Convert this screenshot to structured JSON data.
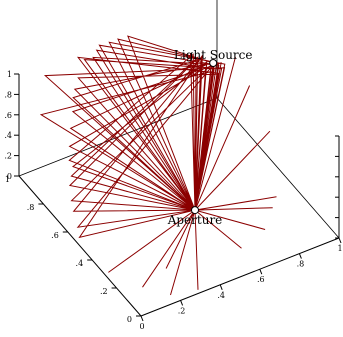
{
  "chart_data": {
    "type": "line",
    "title": "",
    "xlabel": "",
    "ylabel": "",
    "zlabel": "",
    "xlim": [
      0,
      1
    ],
    "ylim": [
      0,
      1
    ],
    "zlim": [
      0,
      1
    ],
    "grid": false,
    "legend": "none",
    "line_color": "#8b0000",
    "point_fill": "#ffffff",
    "x_ticks": [
      "0",
      ".2",
      ".4",
      ".6",
      ".8",
      "1"
    ],
    "y_ticks": [
      "0",
      ".2",
      ".4",
      ".6",
      ".8",
      "1"
    ],
    "z_ticks": [
      "0",
      ".2",
      ".4",
      ".6",
      ".8",
      "1"
    ],
    "points": [
      {
        "name": "aperture",
        "label": "Aperture",
        "x": 0.55,
        "y": 0.45,
        "z": 0.0
      },
      {
        "name": "light-source",
        "label": "Light Source",
        "x": 0.95,
        "y": 0.95,
        "z": 0.45
      }
    ],
    "series": [
      {
        "path": [
          [
            0.86,
            0.99,
            0.56
          ],
          [
            0.55,
            0.45,
            0.0
          ],
          [
            0.05,
            0.9,
            0.7
          ],
          [
            0.92,
            0.92,
            0.43
          ],
          [
            0.55,
            0.45,
            0.0
          ],
          [
            0.12,
            0.98,
            0.92
          ],
          [
            0.97,
            0.89,
            0.47
          ],
          [
            0.55,
            0.45,
            0.0
          ],
          [
            0.2,
            0.88,
            0.78
          ],
          [
            0.9,
            0.97,
            0.5
          ],
          [
            0.55,
            0.45,
            0.0
          ],
          [
            0.05,
            0.65,
            0.2
          ],
          [
            0.94,
            0.95,
            0.44
          ],
          [
            0.55,
            0.45,
            0.0
          ],
          [
            0.3,
            0.95,
            0.98
          ],
          [
            0.98,
            0.93,
            0.4
          ],
          [
            0.55,
            0.45,
            0.0
          ],
          [
            0.1,
            0.75,
            0.42
          ],
          [
            0.88,
            1.0,
            0.52
          ],
          [
            0.55,
            0.45,
            0.0
          ],
          [
            0.38,
            0.98,
            0.97
          ],
          [
            0.93,
            0.91,
            0.46
          ],
          [
            0.55,
            0.45,
            0.0
          ],
          [
            0.02,
            0.55,
            0.1
          ],
          [
            0.96,
            0.96,
            0.42
          ],
          [
            0.55,
            0.45,
            0.0
          ],
          [
            0.15,
            0.82,
            0.6
          ],
          [
            0.91,
            0.94,
            0.48
          ],
          [
            0.55,
            0.45,
            0.0
          ],
          [
            0.45,
            0.99,
            0.98
          ],
          [
            0.99,
            0.92,
            0.45
          ],
          [
            0.55,
            0.45,
            0.0
          ],
          [
            0.08,
            0.7,
            0.35
          ],
          [
            0.89,
            0.98,
            0.51
          ],
          [
            0.55,
            0.45,
            0.0
          ],
          [
            0.25,
            0.92,
            0.88
          ],
          [
            0.95,
            0.9,
            0.41
          ],
          [
            0.55,
            0.45,
            0.0
          ],
          [
            0.03,
            0.6,
            0.18
          ],
          [
            0.92,
            0.99,
            0.49
          ],
          [
            0.55,
            0.45,
            0.0
          ],
          [
            0.35,
            0.96,
            0.95
          ],
          [
            0.97,
            0.94,
            0.43
          ],
          [
            0.55,
            0.45,
            0.0
          ],
          [
            0.12,
            0.78,
            0.5
          ],
          [
            0.9,
            0.93,
            0.47
          ],
          [
            0.55,
            0.45,
            0.0
          ],
          [
            0.5,
            1.0,
            0.96
          ],
          [
            0.98,
            0.97,
            0.4
          ],
          [
            0.55,
            0.45,
            0.0
          ],
          [
            0.06,
            0.68,
            0.3
          ],
          [
            0.87,
            0.96,
            0.53
          ],
          [
            0.55,
            0.45,
            0.0
          ],
          [
            0.28,
            0.97,
            0.99
          ],
          [
            0.94,
            0.89,
            0.44
          ],
          [
            0.55,
            0.45,
            0.0
          ],
          [
            0.18,
            0.85,
            0.7
          ],
          [
            0.99,
            0.95,
            0.42
          ],
          [
            0.55,
            0.45,
            0.0
          ],
          [
            0.01,
            0.52,
            0.05
          ],
          [
            0.91,
            0.98,
            0.5
          ],
          [
            0.55,
            0.45,
            0.0
          ],
          [
            0.4,
            0.99,
            0.99
          ],
          [
            0.96,
            0.92,
            0.46
          ],
          [
            0.55,
            0.45,
            0.0
          ],
          [
            0.1,
            0.72,
            0.4
          ],
          [
            0.93,
            0.97,
            0.45
          ],
          [
            0.55,
            0.45,
            0.0
          ],
          [
            0.22,
            0.9,
            0.82
          ],
          [
            0.95,
            0.95,
            0.45
          ],
          [
            0.55,
            0.45,
            0.0
          ],
          [
            0.55,
            1.0,
            0.95
          ],
          [
            0.95,
            0.95,
            0.45
          ]
        ]
      },
      {
        "path": [
          [
            0.55,
            0.45,
            0.0
          ],
          [
            0.18,
            0.05,
            0.0
          ],
          [
            0.55,
            0.45,
            0.0
          ],
          [
            0.3,
            0.02,
            0.0
          ],
          [
            0.55,
            0.45,
            0.0
          ],
          [
            0.02,
            0.3,
            0.0
          ],
          [
            0.55,
            0.45,
            0.0
          ],
          [
            0.1,
            0.15,
            0.0
          ],
          [
            0.55,
            0.45,
            0.0
          ],
          [
            0.9,
            0.35,
            0.0
          ],
          [
            0.55,
            0.45,
            0.0
          ],
          [
            0.75,
            0.2,
            0.0
          ],
          [
            0.55,
            0.45,
            0.0
          ],
          [
            0.99,
            0.55,
            0.3
          ],
          [
            0.55,
            0.45,
            0.0
          ],
          [
            0.6,
            0.15,
            0.0
          ],
          [
            0.55,
            0.45,
            0.0
          ],
          [
            0.98,
            0.7,
            0.55
          ],
          [
            0.55,
            0.45,
            0.0
          ],
          [
            0.25,
            0.2,
            0.0
          ],
          [
            0.55,
            0.45,
            0.0
          ],
          [
            0.85,
            0.3,
            0.0
          ],
          [
            0.55,
            0.45,
            0.0
          ],
          [
            0.97,
            0.8,
            0.7
          ],
          [
            0.55,
            0.45,
            0.0
          ]
        ]
      }
    ]
  }
}
